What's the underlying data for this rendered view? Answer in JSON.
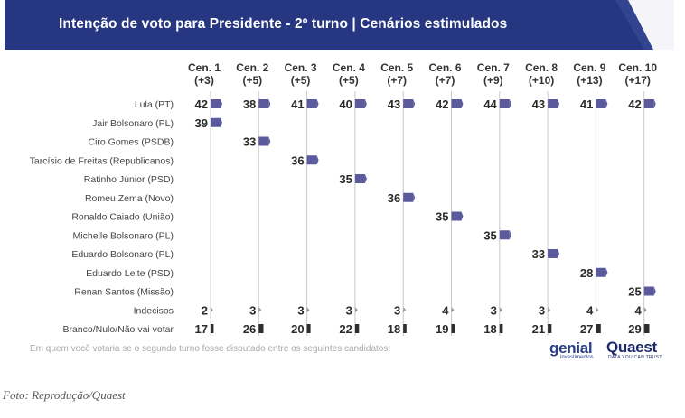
{
  "header": {
    "title": "Intenção de voto para Presidente - 2º turno | Cenários estimulados"
  },
  "footnote": "Em quem você votaria se o segundo turno fosse disputado entre os seguintes candidatos:",
  "caption": "Foto: Reprodução/Quaest",
  "logos": {
    "genial_main": "genial",
    "genial_sub": "investimentos",
    "quaest_main": "Quaest",
    "quaest_sub": "DATA YOU CAN TRUST"
  },
  "colors": {
    "header": "#263681",
    "bar": "#5b5a9d",
    "dark_mark": "#2e2e2e",
    "line": "#c9c9c9",
    "text": "#444444"
  },
  "chart_data": {
    "type": "table",
    "scenarios": [
      {
        "label": "Cen. 1",
        "margin": "(+3)"
      },
      {
        "label": "Cen. 2",
        "margin": "(+5)"
      },
      {
        "label": "Cen. 3",
        "margin": "(+5)"
      },
      {
        "label": "Cen. 4",
        "margin": "(+5)"
      },
      {
        "label": "Cen. 5",
        "margin": "(+7)"
      },
      {
        "label": "Cen. 6",
        "margin": "(+7)"
      },
      {
        "label": "Cen. 7",
        "margin": "(+9)"
      },
      {
        "label": "Cen. 8",
        "margin": "(+10)"
      },
      {
        "label": "Cen. 9",
        "margin": "(+13)"
      },
      {
        "label": "Cen. 10",
        "margin": "(+17)"
      }
    ],
    "rows": [
      {
        "label": "Lula (PT)",
        "style": "candidate",
        "values": [
          42,
          38,
          41,
          40,
          43,
          42,
          44,
          43,
          41,
          42
        ]
      },
      {
        "label": "Jair Bolsonaro (PL)",
        "style": "candidate",
        "values": [
          39,
          null,
          null,
          null,
          null,
          null,
          null,
          null,
          null,
          null
        ]
      },
      {
        "label": "Ciro Gomes (PSDB)",
        "style": "candidate",
        "values": [
          null,
          33,
          null,
          null,
          null,
          null,
          null,
          null,
          null,
          null
        ]
      },
      {
        "label": "Tarcísio de Freitas (Republicanos)",
        "style": "candidate",
        "values": [
          null,
          null,
          36,
          null,
          null,
          null,
          null,
          null,
          null,
          null
        ]
      },
      {
        "label": "Ratinho Júnior (PSD)",
        "style": "candidate",
        "values": [
          null,
          null,
          null,
          35,
          null,
          null,
          null,
          null,
          null,
          null
        ]
      },
      {
        "label": "Romeu Zema (Novo)",
        "style": "candidate",
        "values": [
          null,
          null,
          null,
          null,
          36,
          null,
          null,
          null,
          null,
          null
        ]
      },
      {
        "label": "Ronaldo Caiado (União)",
        "style": "candidate",
        "values": [
          null,
          null,
          null,
          null,
          null,
          35,
          null,
          null,
          null,
          null
        ]
      },
      {
        "label": "Michelle Bolsonaro (PL)",
        "style": "candidate",
        "values": [
          null,
          null,
          null,
          null,
          null,
          null,
          35,
          null,
          null,
          null
        ]
      },
      {
        "label": "Eduardo Bolsonaro (PL)",
        "style": "candidate",
        "values": [
          null,
          null,
          null,
          null,
          null,
          null,
          null,
          33,
          null,
          null
        ]
      },
      {
        "label": "Eduardo Leite (PSD)",
        "style": "candidate",
        "values": [
          null,
          null,
          null,
          null,
          null,
          null,
          null,
          null,
          28,
          null
        ]
      },
      {
        "label": "Renan Santos (Missão)",
        "style": "candidate",
        "values": [
          null,
          null,
          null,
          null,
          null,
          null,
          null,
          null,
          null,
          25
        ]
      },
      {
        "label": "Indecisos",
        "style": "undecided",
        "values": [
          2,
          3,
          3,
          3,
          3,
          4,
          3,
          3,
          4,
          4
        ]
      },
      {
        "label": "Branco/Nulo/Não vai votar",
        "style": "blank",
        "values": [
          17,
          26,
          20,
          22,
          18,
          19,
          18,
          21,
          27,
          29
        ]
      }
    ],
    "unit": "%"
  }
}
